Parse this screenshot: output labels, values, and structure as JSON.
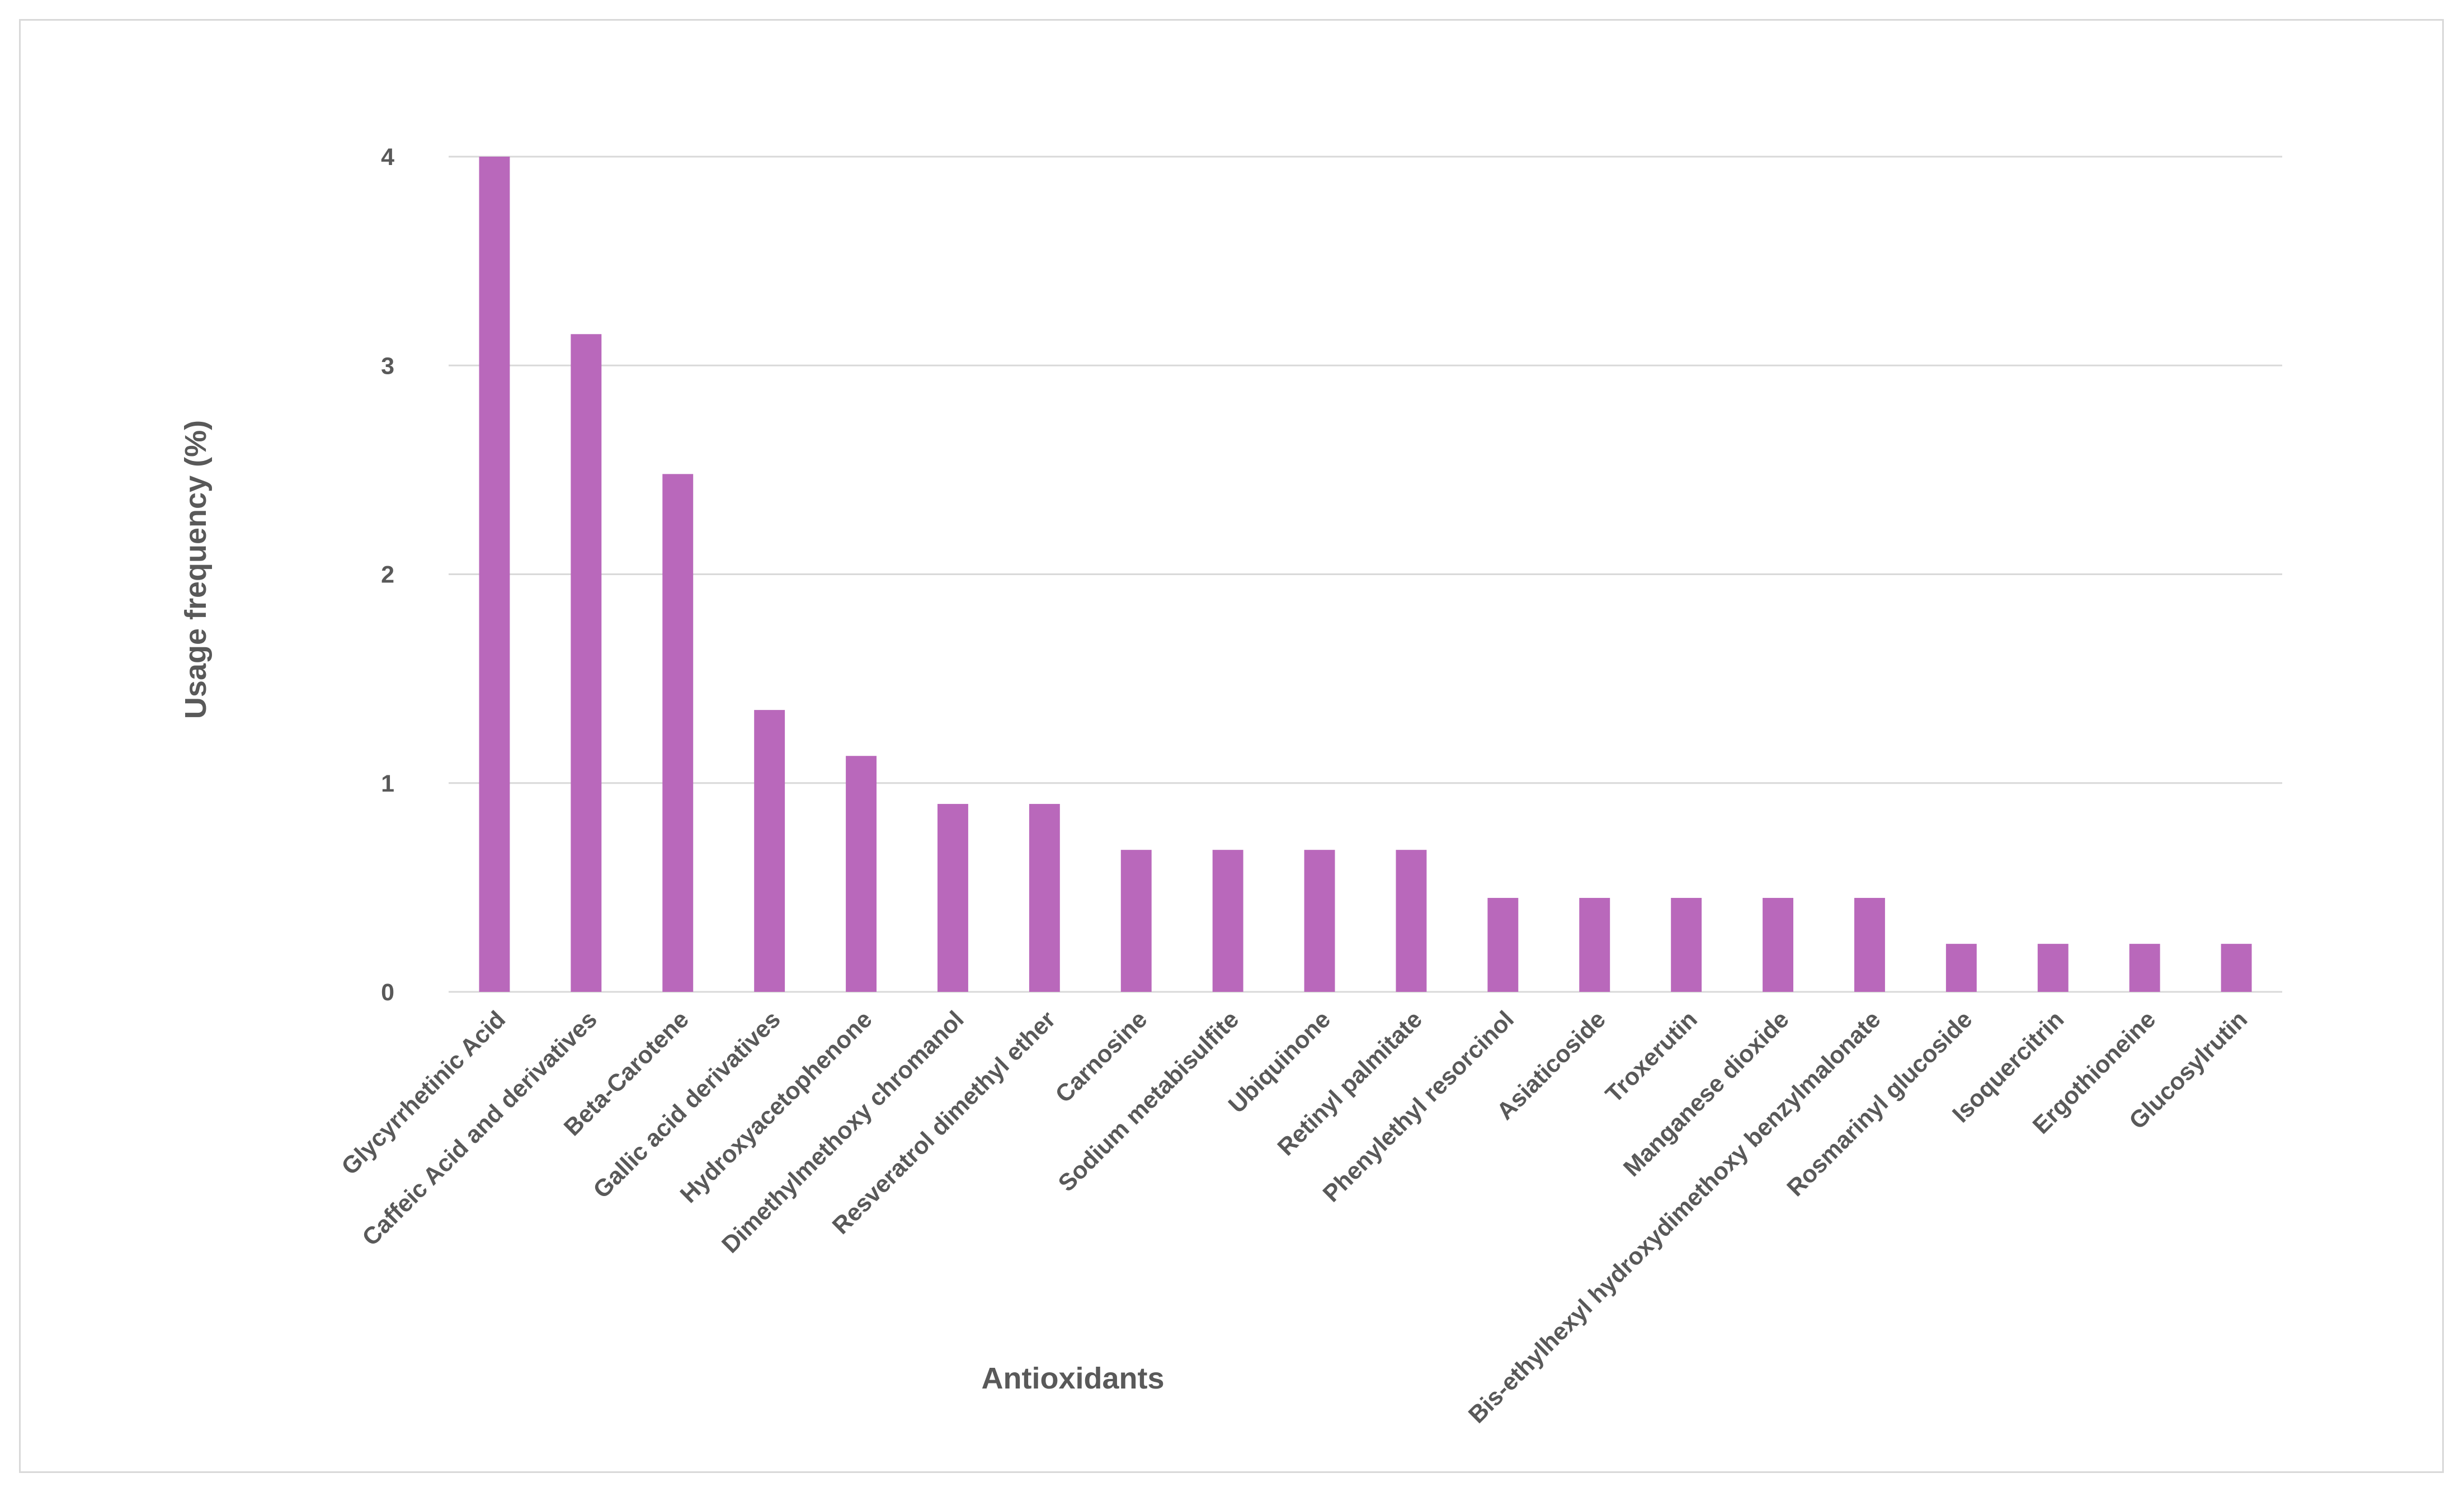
{
  "chart_data": {
    "type": "bar",
    "title": "",
    "xlabel": "Antioxidants",
    "ylabel": "Usage frequency (%)",
    "ylim": [
      0,
      4
    ],
    "yticks": [
      0,
      1,
      2,
      3,
      4
    ],
    "grid": true,
    "bar_color": "#b968bb",
    "grid_color": "#d9d9d9",
    "text_color": "#595959",
    "categories": [
      "Glycyrrhetinic Acid",
      "Caffeic Acid and derivatives",
      "Beta-Carotene",
      "Gallic acid derivatives",
      "Hydroxyacetophenone",
      "Dimethylmethoxy chromanol",
      "Resveratrol dimethyl ether",
      "Carnosine",
      "Sodium metabisulfite",
      "Ubiquinone",
      "Retinyl palmitate",
      "Phenylethyl resorcinol",
      "Asiaticoside",
      "Troxerutin",
      "Manganese dioxide",
      "Bis-ethylhexyl hydroxydimethoxy benzylmalonate",
      "Rosmarinyl glucoside",
      "Isoquercitrin",
      "Ergothioneine",
      "Glucosylrutin"
    ],
    "values": [
      4.0,
      3.15,
      2.48,
      1.35,
      1.13,
      0.9,
      0.9,
      0.68,
      0.68,
      0.68,
      0.68,
      0.45,
      0.45,
      0.45,
      0.45,
      0.45,
      0.23,
      0.23,
      0.23,
      0.23
    ]
  }
}
